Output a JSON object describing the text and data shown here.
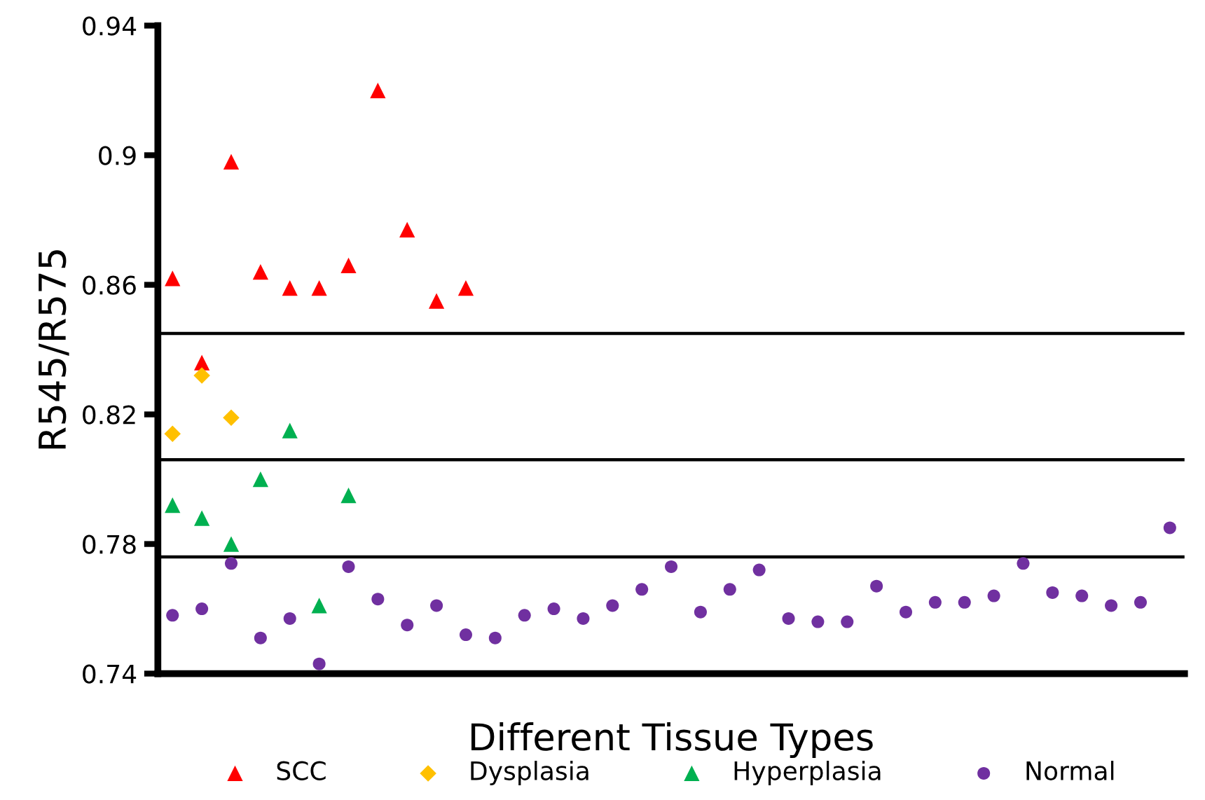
{
  "chart_data": {
    "type": "scatter",
    "ylabel": "R545/R575",
    "xlabel": "Different Tissue Types",
    "categories": [
      null,
      null,
      null,
      null,
      null,
      null,
      null,
      null,
      null,
      null,
      null,
      null,
      null,
      null,
      null,
      null,
      null,
      null,
      null,
      null,
      null,
      null,
      null,
      null,
      null,
      null,
      null,
      null,
      null,
      null,
      null,
      null,
      null,
      null,
      null
    ],
    "series": [
      {
        "name": "SCC",
        "color": "#ff0000",
        "marker": "triangle",
        "values": [
          0.862,
          0.836,
          0.898,
          0.864,
          0.859,
          0.859,
          0.866,
          0.92,
          0.877,
          0.855,
          0.859,
          null,
          null,
          null,
          null,
          null,
          null,
          null,
          null,
          null,
          null,
          null,
          null,
          null,
          null,
          null,
          null,
          null,
          null,
          null,
          null,
          null,
          null,
          null,
          null
        ]
      },
      {
        "name": "Dysplasia",
        "color": "#ffc000",
        "marker": "diamond",
        "values": [
          0.814,
          0.832,
          0.819,
          null,
          null,
          null,
          null,
          null,
          null,
          null,
          null,
          null,
          null,
          null,
          null,
          null,
          null,
          null,
          null,
          null,
          null,
          null,
          null,
          null,
          null,
          null,
          null,
          null,
          null,
          null,
          null,
          null,
          null,
          null,
          null
        ]
      },
      {
        "name": "Hyperplasia",
        "color": "#00b050",
        "marker": "triangle",
        "values": [
          0.792,
          0.788,
          0.78,
          0.8,
          0.815,
          0.761,
          0.795,
          null,
          null,
          null,
          null,
          null,
          null,
          null,
          null,
          null,
          null,
          null,
          null,
          null,
          null,
          null,
          null,
          null,
          null,
          null,
          null,
          null,
          null,
          null,
          null,
          null,
          null,
          null,
          null
        ]
      },
      {
        "name": "Normal",
        "color": "#7030a0",
        "marker": "circle",
        "values": [
          0.758,
          0.76,
          0.774,
          0.751,
          0.757,
          0.743,
          0.773,
          0.763,
          0.755,
          0.761,
          0.752,
          0.751,
          0.758,
          0.76,
          0.757,
          0.761,
          0.766,
          0.773,
          0.759,
          0.766,
          0.772,
          0.757,
          0.756,
          0.756,
          0.767,
          0.759,
          0.762,
          0.762,
          0.764,
          0.774,
          0.765,
          0.764,
          0.761,
          0.762,
          0.785
        ]
      }
    ],
    "ylim": [
      0.74,
      0.94
    ],
    "yticks": [
      {
        "value": 0.74,
        "label": "0.74"
      },
      {
        "value": 0.78,
        "label": "0.78"
      },
      {
        "value": 0.82,
        "label": "0.82"
      },
      {
        "value": 0.86,
        "label": "0.86"
      },
      {
        "value": 0.9,
        "label": "0.9"
      },
      {
        "value": 0.94,
        "label": "0.94"
      }
    ],
    "ref_lines": [
      {
        "axis": "y",
        "value": 0.845,
        "color": "#000000"
      },
      {
        "axis": "y",
        "value": 0.806,
        "color": "#000000"
      },
      {
        "axis": "y",
        "value": 0.776,
        "color": "#000000"
      }
    ],
    "tick_labels": "y",
    "grid": false,
    "legend": "bottom"
  }
}
